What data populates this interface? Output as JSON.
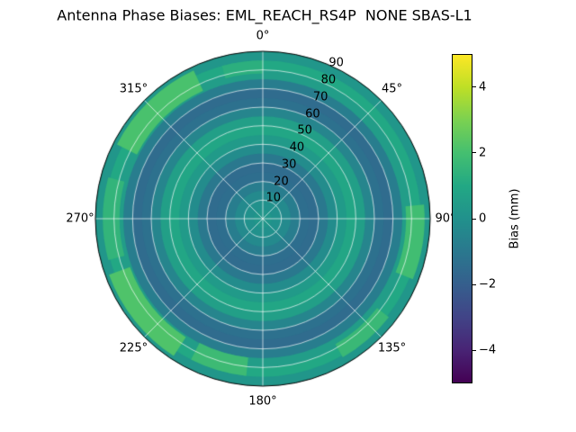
{
  "title": "Antenna Phase Biases: EML_REACH_RS4P  NONE SBAS-L1",
  "chart_data": {
    "type": "heatmap",
    "projection": "polar",
    "title": "Antenna Phase Biases: EML_REACH_RS4P  NONE SBAS-L1",
    "value_unit": "mm",
    "radial_range": [
      0,
      90
    ],
    "radial_label_azimuth_deg": 25,
    "grid": true,
    "angular_ticks": [
      {
        "az": 0,
        "label": "0°"
      },
      {
        "az": 45,
        "label": "45°"
      },
      {
        "az": 90,
        "label": "90°"
      },
      {
        "az": 135,
        "label": "135°"
      },
      {
        "az": 180,
        "label": "180°"
      },
      {
        "az": 225,
        "label": "225°"
      },
      {
        "az": 270,
        "label": "270°"
      },
      {
        "az": 315,
        "label": "315°"
      }
    ],
    "radial_ticks": [
      {
        "value": 10,
        "label": "10"
      },
      {
        "value": 20,
        "label": "20"
      },
      {
        "value": 30,
        "label": "30"
      },
      {
        "value": 40,
        "label": "40"
      },
      {
        "value": 50,
        "label": "50"
      },
      {
        "value": 60,
        "label": "60"
      },
      {
        "value": 70,
        "label": "70"
      },
      {
        "value": 80,
        "label": "80"
      },
      {
        "value": 90,
        "label": "90"
      }
    ],
    "rings": [
      {
        "r0": 0,
        "r1": 5,
        "bias": 0.2
      },
      {
        "r0": 5,
        "r1": 10,
        "bias": 0.0
      },
      {
        "r0": 10,
        "r1": 15,
        "bias": -0.3
      },
      {
        "r0": 15,
        "r1": 20,
        "bias": -0.8
      },
      {
        "r0": 20,
        "r1": 25,
        "bias": -1.4
      },
      {
        "r0": 25,
        "r1": 30,
        "bias": -1.5
      },
      {
        "r0": 30,
        "r1": 35,
        "bias": -1.0
      },
      {
        "r0": 35,
        "r1": 40,
        "bias": -0.2
      },
      {
        "r0": 40,
        "r1": 45,
        "bias": 0.4
      },
      {
        "r0": 45,
        "r1": 50,
        "bias": 0.9
      },
      {
        "r0": 50,
        "r1": 55,
        "bias": 0.6
      },
      {
        "r0": 55,
        "r1": 60,
        "bias": -0.5
      },
      {
        "r0": 60,
        "r1": 65,
        "bias": -1.3
      },
      {
        "r0": 65,
        "r1": 70,
        "bias": -1.5
      },
      {
        "r0": 70,
        "r1": 75,
        "bias": -0.8
      },
      {
        "r0": 75,
        "r1": 80,
        "bias": 0.5
      },
      {
        "r0": 80,
        "r1": 85,
        "bias": 1.0
      },
      {
        "r0": 85,
        "r1": 90,
        "bias": 0.2
      }
    ],
    "patches": [
      {
        "az0": 85,
        "az1": 112,
        "r0": 77,
        "r1": 87,
        "bias": 1.9
      },
      {
        "az0": 128,
        "az1": 150,
        "r0": 78,
        "r1": 86,
        "bias": 1.7
      },
      {
        "az0": 186,
        "az1": 207,
        "r0": 75,
        "r1": 85,
        "bias": 1.8
      },
      {
        "az0": 213,
        "az1": 250,
        "r0": 76,
        "r1": 88,
        "bias": 2.2
      },
      {
        "az0": 255,
        "az1": 285,
        "r0": 77,
        "r1": 86,
        "bias": 1.5
      },
      {
        "az0": 297,
        "az1": 335,
        "r0": 76,
        "r1": 88,
        "bias": 2.1
      },
      {
        "az0": 345,
        "az1": 360,
        "r0": 78,
        "r1": 85,
        "bias": 1.3
      }
    ],
    "colorbar": {
      "label": "Bias (mm)",
      "min": -5,
      "max": 5,
      "ticks": [
        {
          "value": 4,
          "label": "4"
        },
        {
          "value": 2,
          "label": "2"
        },
        {
          "value": 0,
          "label": "0"
        },
        {
          "value": -2,
          "label": "−2"
        },
        {
          "value": -4,
          "label": "−4"
        }
      ],
      "colormap": "viridis"
    }
  },
  "colors": {
    "background": "#ffffff",
    "grid_line": "#ffffff",
    "spine": "#000000",
    "text": "#000000",
    "viridis": [
      "#440154",
      "#482475",
      "#414487",
      "#355f8d",
      "#2a788e",
      "#21918c",
      "#22a884",
      "#44bf70",
      "#7ad151",
      "#bddf26",
      "#fde725"
    ]
  }
}
